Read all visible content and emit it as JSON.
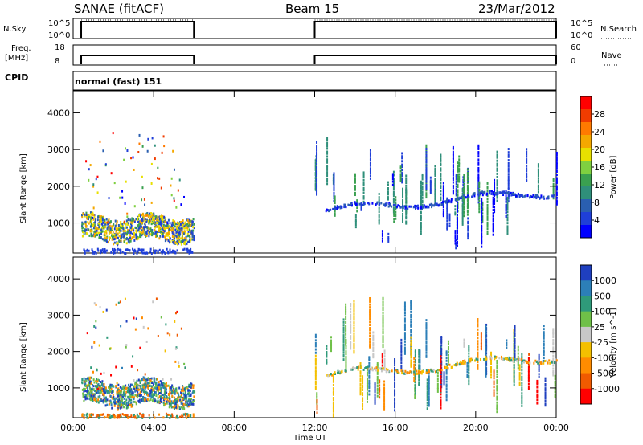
{
  "header": {
    "station": "SANAE (fitACF)",
    "beam": "Beam 15",
    "date": "23/Mar/2012"
  },
  "params_panel": {
    "nsky_label": "N.Sky",
    "nsearch_label": "N.Search",
    "freq_label_line1": "Freq.",
    "freq_label_line2": "[MHz]",
    "nave_label": "Nave",
    "cpid_label": "CPID",
    "cpid_value": "normal (fast) 151",
    "nsky_ticks": [
      "10^5",
      "10^0"
    ],
    "nsearch_ticks": [
      "10^5",
      "10^0"
    ],
    "freq_ticks": [
      "18",
      "8"
    ],
    "nave_ticks": [
      "60",
      "0"
    ],
    "active_intervals_ut_hours": [
      [
        0.4,
        6.0
      ],
      [
        12.0,
        24.0
      ]
    ]
  },
  "chart_data": [
    {
      "type": "heatmap",
      "title": "",
      "xlabel": "Time UT",
      "ylabel": "Slant Range [km]",
      "colorbar_label": "Power [dB]",
      "colorbar_ticks": [
        "28",
        "24",
        "20",
        "16",
        "12",
        "8",
        "4"
      ],
      "colorbar_colors": [
        "#ff0000",
        "#f03c00",
        "#ff7a00",
        "#f4a800",
        "#e8e000",
        "#7fd040",
        "#3aa050",
        "#2f8f7a",
        "#2a5fb0",
        "#1f3fd8",
        "#0000ff"
      ],
      "x_ticks": [
        "00:00",
        "04:00",
        "08:00",
        "12:00",
        "16:00",
        "20:00",
        "00:00"
      ],
      "xlim_hours": [
        0,
        24
      ],
      "y_ticks": [
        "4000",
        "3000",
        "2000",
        "1000"
      ],
      "ylim_km": [
        180,
        4600
      ]
    },
    {
      "type": "heatmap",
      "title": "",
      "xlabel": "Time UT",
      "ylabel": "Slant Range [km]",
      "colorbar_label": "Velocity [m s^-1]",
      "colorbar_ticks": [
        "1000",
        "500",
        "100",
        "25",
        "-25",
        "-100",
        "-500",
        "-1000"
      ],
      "colorbar_colors": [
        "#1f3fbf",
        "#2c7fb8",
        "#2f9a7a",
        "#6fc048",
        "#c8c8c8",
        "#f4c000",
        "#ff8c00",
        "#f05a00",
        "#ff0000"
      ],
      "x_ticks": [
        "00:00",
        "04:00",
        "08:00",
        "12:00",
        "16:00",
        "20:00",
        "00:00"
      ],
      "xlim_hours": [
        0,
        24
      ],
      "y_ticks": [
        "4000",
        "3000",
        "2000",
        "1000"
      ],
      "ylim_km": [
        180,
        4600
      ]
    }
  ],
  "x_axis": {
    "label": "Time UT"
  }
}
